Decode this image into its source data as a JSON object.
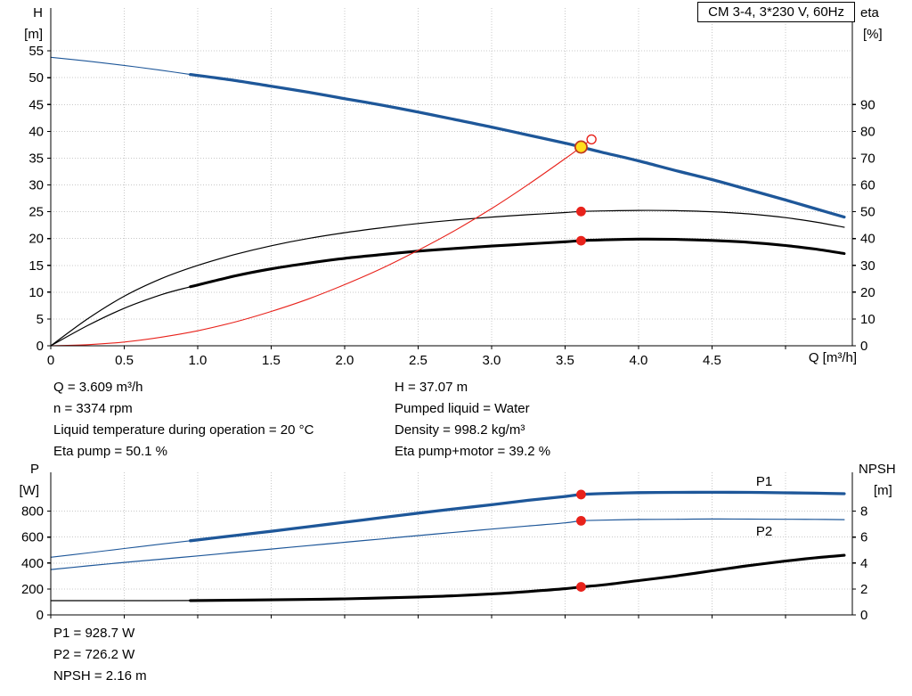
{
  "title_box": "CM 3-4, 3*230 V, 60Hz",
  "axis_labels": {
    "h": "H",
    "h_unit": "[m]",
    "eta": "eta",
    "eta_unit": "[%]",
    "q": "Q [m³/h]",
    "p": "P",
    "p_unit": "[W]",
    "npsh": "NPSH",
    "npsh_unit": "[m]"
  },
  "top_details": {
    "left": [
      "Q = 3.609 m³/h",
      "n = 3374 rpm",
      "Liquid temperature during operation = 20 °C",
      "Eta pump = 50.1 %"
    ],
    "right": [
      "H = 37.07 m",
      "Pumped liquid = Water",
      "Density = 998.2 kg/m³",
      "Eta pump+motor = 39.2 %"
    ]
  },
  "bottom_details": [
    "P1 = 928.7 W",
    "P2 = 726.2 W",
    "NPSH = 2.16 m"
  ],
  "colors": {
    "curve_blue": "#1e5799",
    "curve_black": "#000000",
    "curve_red": "#e8221b",
    "duty_yellow": "#ffdf1d",
    "duty_ring": "#c03a20",
    "grid": "#c8c8c8",
    "axis": "#000000"
  },
  "chart_data": [
    {
      "id": "top",
      "type": "line",
      "title": "CM 3-4, 3*230 V, 60Hz",
      "xlabel": "Q [m³/h]",
      "ylabel_left": "H [m]",
      "ylabel_right": "eta [%]",
      "x_range": [
        0,
        5.455
      ],
      "y_left_range": [
        0,
        63
      ],
      "y_right_range": [
        0,
        126
      ],
      "x_ticks": [
        0,
        0.5,
        1,
        1.5,
        2,
        2.5,
        3,
        3.5,
        4,
        4.5,
        5
      ],
      "x_tick_labels": [
        "0",
        "0.5",
        "1.0",
        "1.5",
        "2.0",
        "2.5",
        "3.0",
        "3.5",
        "4.0",
        "4.5",
        ""
      ],
      "y_left_ticks": [
        0,
        5,
        10,
        15,
        20,
        25,
        30,
        35,
        40,
        45,
        50,
        55
      ],
      "y_right_ticks": [
        0,
        10,
        20,
        30,
        40,
        50,
        60,
        70,
        80,
        90
      ],
      "series": [
        {
          "name": "head-curve",
          "axis": "left",
          "color": "#1e5799",
          "thin_width": 1.1,
          "width": 3.3,
          "thick_from": 0.95,
          "points": [
            [
              0,
              53.8
            ],
            [
              0.25,
              53.1
            ],
            [
              0.5,
              52.3
            ],
            [
              0.75,
              51.4
            ],
            [
              0.95,
              50.6
            ],
            [
              1.25,
              49.5
            ],
            [
              1.5,
              48.4
            ],
            [
              1.75,
              47.3
            ],
            [
              2,
              46.1
            ],
            [
              2.25,
              44.9
            ],
            [
              2.5,
              43.6
            ],
            [
              2.75,
              42.2
            ],
            [
              3,
              40.8
            ],
            [
              3.25,
              39.3
            ],
            [
              3.5,
              37.8
            ],
            [
              3.609,
              37.07
            ],
            [
              3.75,
              36.1
            ],
            [
              4,
              34.5
            ],
            [
              4.25,
              32.7
            ],
            [
              4.5,
              31
            ],
            [
              4.75,
              29.1
            ],
            [
              5,
              27.2
            ],
            [
              5.2,
              25.6
            ],
            [
              5.4,
              24
            ]
          ]
        },
        {
          "name": "eta-pump-curve",
          "axis": "right",
          "color": "#000000",
          "width": 1.2,
          "points": [
            [
              0,
              0
            ],
            [
              0.25,
              10
            ],
            [
              0.5,
              18.5
            ],
            [
              0.75,
              25
            ],
            [
              1,
              30
            ],
            [
              1.25,
              34
            ],
            [
              1.5,
              37.3
            ],
            [
              1.75,
              40
            ],
            [
              2,
              42.2
            ],
            [
              2.25,
              44
            ],
            [
              2.5,
              45.6
            ],
            [
              2.75,
              46.9
            ],
            [
              3,
              48
            ],
            [
              3.25,
              48.9
            ],
            [
              3.5,
              49.7
            ],
            [
              3.609,
              50.1
            ],
            [
              3.75,
              50.3
            ],
            [
              4,
              50.5
            ],
            [
              4.25,
              50.4
            ],
            [
              4.5,
              50
            ],
            [
              4.75,
              49.2
            ],
            [
              5,
              47.8
            ],
            [
              5.2,
              46.2
            ],
            [
              5.4,
              44.2
            ]
          ]
        },
        {
          "name": "eta-pump-motor-curve",
          "axis": "right",
          "color": "#000000",
          "thin_width": 1.2,
          "width": 3.1,
          "thick_from": 0.95,
          "points": [
            [
              0,
              0
            ],
            [
              0.25,
              7.5
            ],
            [
              0.5,
              14
            ],
            [
              0.75,
              19
            ],
            [
              0.95,
              22
            ],
            [
              1.25,
              26
            ],
            [
              1.5,
              28.7
            ],
            [
              1.75,
              30.8
            ],
            [
              2,
              32.6
            ],
            [
              2.25,
              34
            ],
            [
              2.5,
              35.3
            ],
            [
              2.75,
              36.3
            ],
            [
              3,
              37.2
            ],
            [
              3.25,
              38
            ],
            [
              3.5,
              38.8
            ],
            [
              3.609,
              39.2
            ],
            [
              3.75,
              39.5
            ],
            [
              4,
              39.8
            ],
            [
              4.25,
              39.7
            ],
            [
              4.5,
              39.3
            ],
            [
              4.75,
              38.6
            ],
            [
              5,
              37.4
            ],
            [
              5.2,
              36.1
            ],
            [
              5.4,
              34.4
            ]
          ]
        },
        {
          "name": "system-curve",
          "axis": "left",
          "color": "#e8221b",
          "width": 1.1,
          "points": [
            [
              0,
              0
            ],
            [
              0.25,
              0.2
            ],
            [
              0.5,
              0.7
            ],
            [
              0.75,
              1.6
            ],
            [
              1,
              2.8
            ],
            [
              1.25,
              4.4
            ],
            [
              1.5,
              6.4
            ],
            [
              1.75,
              8.7
            ],
            [
              2,
              11.4
            ],
            [
              2.25,
              14.4
            ],
            [
              2.5,
              17.8
            ],
            [
              2.75,
              21.5
            ],
            [
              3,
              25.6
            ],
            [
              3.25,
              30.1
            ],
            [
              3.5,
              34.9
            ],
            [
              3.609,
              37.07
            ],
            [
              3.68,
              38.5
            ]
          ]
        }
      ],
      "markers": [
        {
          "type": "dot",
          "x": 3.609,
          "y": 50.1,
          "axis": "right"
        },
        {
          "type": "dot",
          "x": 3.609,
          "y": 39.2,
          "axis": "right"
        },
        {
          "type": "open",
          "x": 3.68,
          "y": 38.5,
          "axis": "left"
        },
        {
          "type": "duty",
          "x": 3.609,
          "y": 37.07,
          "axis": "left"
        }
      ],
      "annotations": []
    },
    {
      "id": "bottom",
      "type": "line",
      "xlabel": "",
      "ylabel_left": "P [W]",
      "ylabel_right": "NPSH [m]",
      "x_range": [
        0,
        5.455
      ],
      "y_left_range": [
        0,
        1100
      ],
      "y_right_range": [
        0,
        11
      ],
      "x_ticks": [
        0,
        0.5,
        1,
        1.5,
        2,
        2.5,
        3,
        3.5,
        4,
        4.5,
        5
      ],
      "x_tick_labels": [
        "",
        "",
        "",
        "",
        "",
        "",
        "",
        "",
        "",
        "",
        ""
      ],
      "y_left_ticks": [
        0,
        200,
        400,
        600,
        800
      ],
      "y_right_ticks": [
        0,
        2,
        4,
        6,
        8
      ],
      "series": [
        {
          "name": "p1-curve",
          "axis": "left",
          "color": "#1e5799",
          "thin_width": 1.1,
          "width": 3.3,
          "thick_from": 0.95,
          "points": [
            [
              0,
              445
            ],
            [
              0.25,
              478
            ],
            [
              0.5,
              512
            ],
            [
              0.75,
              546
            ],
            [
              0.95,
              572
            ],
            [
              1.25,
              612
            ],
            [
              1.5,
              645
            ],
            [
              1.75,
              680
            ],
            [
              2,
              715
            ],
            [
              2.25,
              750
            ],
            [
              2.5,
              785
            ],
            [
              2.75,
              818
            ],
            [
              3,
              850
            ],
            [
              3.25,
              884
            ],
            [
              3.5,
              914
            ],
            [
              3.609,
              928.7
            ],
            [
              3.75,
              936
            ],
            [
              4,
              943
            ],
            [
              4.25,
              945
            ],
            [
              4.5,
              946
            ],
            [
              4.75,
              945
            ],
            [
              5,
              942
            ],
            [
              5.2,
              939
            ],
            [
              5.4,
              935
            ]
          ]
        },
        {
          "name": "p2-curve",
          "axis": "left",
          "color": "#1e5799",
          "width": 1.2,
          "points": [
            [
              0,
              350
            ],
            [
              0.25,
              378
            ],
            [
              0.5,
              405
            ],
            [
              0.75,
              430
            ],
            [
              1,
              455
            ],
            [
              1.25,
              482
            ],
            [
              1.5,
              508
            ],
            [
              1.75,
              534
            ],
            [
              2,
              560
            ],
            [
              2.25,
              586
            ],
            [
              2.5,
              612
            ],
            [
              2.75,
              637
            ],
            [
              3,
              662
            ],
            [
              3.25,
              686
            ],
            [
              3.5,
              710
            ],
            [
              3.609,
              726.2
            ],
            [
              3.75,
              731
            ],
            [
              4,
              736
            ],
            [
              4.25,
              738
            ],
            [
              4.5,
              740
            ],
            [
              4.75,
              739
            ],
            [
              5,
              738
            ],
            [
              5.2,
              737
            ],
            [
              5.4,
              735
            ]
          ]
        },
        {
          "name": "npsh-curve",
          "axis": "right",
          "color": "#000000",
          "thin_width": 1.2,
          "width": 3.1,
          "thick_from": 0.95,
          "points": [
            [
              0,
              1.1
            ],
            [
              0.5,
              1.1
            ],
            [
              0.95,
              1.11
            ],
            [
              1.5,
              1.16
            ],
            [
              2,
              1.24
            ],
            [
              2.5,
              1.38
            ],
            [
              2.75,
              1.48
            ],
            [
              3,
              1.62
            ],
            [
              3.25,
              1.8
            ],
            [
              3.5,
              2.02
            ],
            [
              3.609,
              2.16
            ],
            [
              3.75,
              2.3
            ],
            [
              4,
              2.65
            ],
            [
              4.25,
              3
            ],
            [
              4.5,
              3.4
            ],
            [
              4.75,
              3.8
            ],
            [
              5,
              4.15
            ],
            [
              5.2,
              4.4
            ],
            [
              5.4,
              4.6
            ]
          ]
        }
      ],
      "markers": [
        {
          "type": "dot",
          "x": 3.609,
          "y": 928.7,
          "axis": "left"
        },
        {
          "type": "dot",
          "x": 3.609,
          "y": 726.2,
          "axis": "left"
        },
        {
          "type": "dot",
          "x": 3.609,
          "y": 2.16,
          "axis": "right"
        }
      ],
      "annotations": [
        {
          "text": "P1",
          "x": 4.8,
          "y": 1030,
          "axis": "left"
        },
        {
          "text": "P2",
          "x": 4.8,
          "y": 645,
          "axis": "left"
        }
      ]
    }
  ]
}
